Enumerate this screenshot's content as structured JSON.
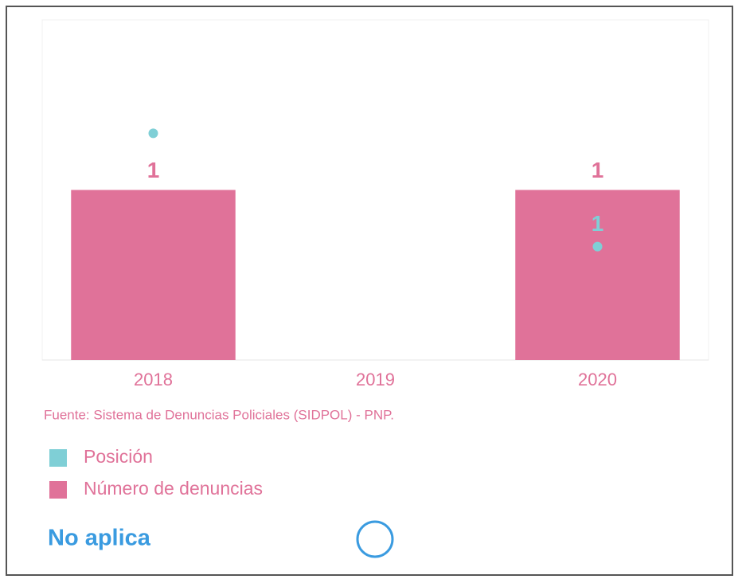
{
  "chart_data": {
    "type": "bar",
    "categories": [
      "2018",
      "2019",
      "2020"
    ],
    "series": [
      {
        "name": "Posición",
        "type": "scatter",
        "color": "#7fcfd6",
        "axis": "y2",
        "values": [
          2,
          null,
          1
        ],
        "value_labels": [
          null,
          null,
          "1"
        ]
      },
      {
        "name": "Número de denuncias",
        "type": "bar",
        "color": "#e07299",
        "values": [
          1,
          null,
          1
        ]
      }
    ],
    "ylim": [
      0,
      2
    ],
    "y2lim": [
      0,
      3
    ],
    "source": "Fuente: Sistema de Denuncias Policiales (SIDPOL) - PNP.",
    "status": "No aplica"
  }
}
